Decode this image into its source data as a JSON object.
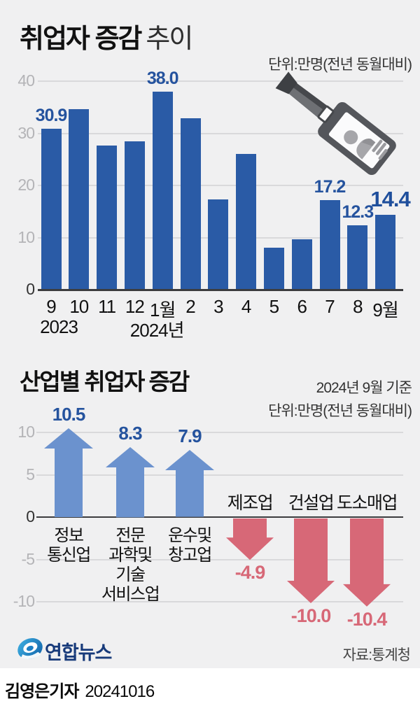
{
  "colors": {
    "background": "#f0f0f1",
    "band_white": "#ffffff",
    "bar_blue": "#2a5ba6",
    "value_blue": "#25539e",
    "up_arrow_blue": "#6b92ce",
    "down_arrow_pink": "#d76877",
    "grid_gray": "#d9d9db",
    "axis_dark": "#3c3c3e",
    "tick_gray": "#b4b4b7",
    "brand_navy": "#173a7a"
  },
  "header": {
    "title_main": "취업자 증감",
    "title_sub": "추이",
    "unit_label": "단위:만명(전년 동월대비)"
  },
  "industry_header": {
    "title": "산업별 취업자 증감",
    "asof_label": "2024년 9월 기준",
    "unit_label": "단위:만명(전년 동월대비)"
  },
  "chart_data": [
    {
      "type": "bar",
      "title": "취업자 증감 추이",
      "ylabel": "만명(전년 동월대비)",
      "categories": [
        "9",
        "10",
        "11",
        "12",
        "1월",
        "2",
        "3",
        "4",
        "5",
        "6",
        "7",
        "8",
        "9월"
      ],
      "values": [
        30.9,
        34.6,
        27.7,
        28.5,
        38.0,
        32.9,
        17.3,
        26.1,
        8.0,
        9.6,
        17.2,
        12.3,
        14.4
      ],
      "value_labels": {
        "0": "30.9",
        "4": "38.0",
        "10": "17.2",
        "11": "12.3",
        "12": "14.4"
      },
      "emphasized_index": 12,
      "year_labels": [
        {
          "index": 0,
          "text": "2023"
        },
        {
          "index": 4,
          "text": "2024년"
        }
      ],
      "yticks": [
        0,
        10,
        20,
        30,
        40
      ],
      "ylim": [
        0,
        42
      ],
      "grid": "on",
      "legend": "none"
    },
    {
      "type": "arrow-bar",
      "title": "산업별 취업자 증감",
      "asof": "2024년 9월 기준",
      "ylabel": "만명(전년 동월대비)",
      "categories": [
        "정보통신업",
        "전문 과학및 기술 서비스업",
        "운수및 창고업",
        "제조업",
        "건설업",
        "도소매업"
      ],
      "category_lines": [
        [
          "정보",
          "통신업"
        ],
        [
          "전문",
          "과학및",
          "기술",
          "서비스업"
        ],
        [
          "운수및",
          "창고업"
        ],
        [
          "제조업"
        ],
        [
          "건설업"
        ],
        [
          "도소매업"
        ]
      ],
      "values": [
        10.5,
        8.3,
        7.9,
        -4.9,
        -10.0,
        -10.4
      ],
      "value_labels": [
        "10.5",
        "8.3",
        "7.9",
        "-4.9",
        "-10.0",
        "-10.4"
      ],
      "yticks": [
        -10,
        -5,
        0,
        5,
        10
      ],
      "ylim": [
        -12,
        12
      ],
      "grid": "on",
      "legend": "none"
    }
  ],
  "footer": {
    "brand": "연합뉴스",
    "source_label": "자료:통계청"
  },
  "byline": {
    "name": "김영은기자",
    "date": "20241016"
  },
  "icons": {
    "badge": "id-badge-icon",
    "brand_logo": "yonhap-news-logo-icon"
  }
}
